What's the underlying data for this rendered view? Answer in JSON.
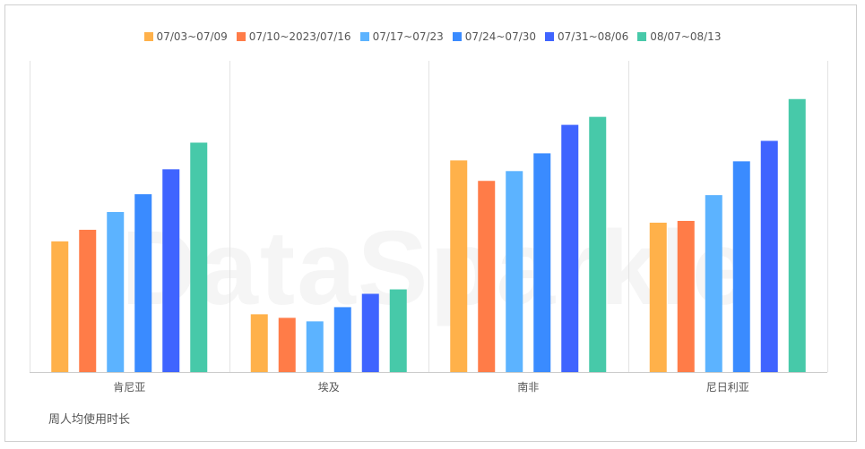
{
  "chart_data": {
    "type": "bar",
    "categories": [
      "肯尼亚",
      "埃及",
      "南非",
      "尼日利亚"
    ],
    "series": [
      {
        "name": "07/03~07/09",
        "color": "#ffb14a",
        "values": [
          147,
          65,
          238,
          168
        ]
      },
      {
        "name": "07/10~2023/07/16",
        "color": "#ff7c48",
        "values": [
          160,
          61,
          215,
          170
        ]
      },
      {
        "name": "07/17~07/23",
        "color": "#5cb3ff",
        "values": [
          180,
          57,
          226,
          199
        ]
      },
      {
        "name": "07/24~07/30",
        "color": "#3a8bff",
        "values": [
          200,
          73,
          246,
          237
        ]
      },
      {
        "name": "07/31~08/06",
        "color": "#3f64ff",
        "values": [
          228,
          88,
          278,
          260
        ]
      },
      {
        "name": "08/07~08/13",
        "color": "#47c9a9",
        "values": [
          258,
          93,
          287,
          307
        ]
      }
    ],
    "ylim": [
      0,
      350
    ],
    "grid": "vertical-category-separators",
    "legend_position": "top-center"
  },
  "caption": "周人均使用时长",
  "watermark": "DataSparkle"
}
